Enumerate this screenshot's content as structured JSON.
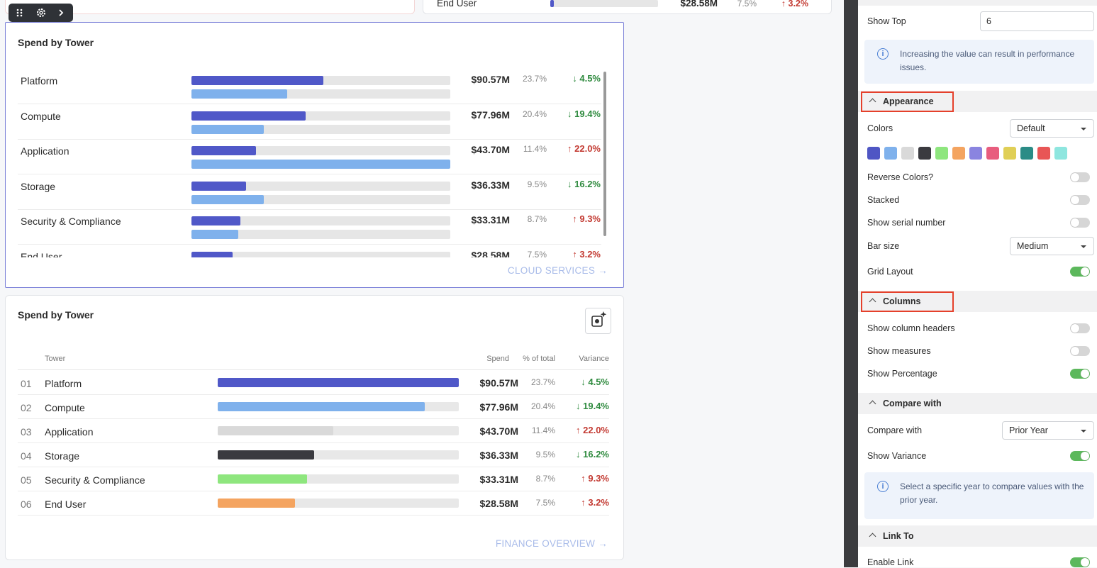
{
  "top_partial": {
    "tower": "End User",
    "spend": "$28.58M",
    "percent": "7.5%",
    "variance": "↑ 3.2%",
    "bar": 3
  },
  "card1": {
    "title": "Spend by Tower",
    "link": "CLOUD SERVICES →",
    "rows": [
      {
        "tower": "Platform",
        "spend": "$90.57M",
        "percent": "23.7%",
        "variance": "↓ 4.5%",
        "bar": 51,
        "compare_bar": 37
      },
      {
        "tower": "Compute",
        "spend": "$77.96M",
        "percent": "20.4%",
        "variance": "↓ 19.4%",
        "bar": 44,
        "compare_bar": 28
      },
      {
        "tower": "Application",
        "spend": "$43.70M",
        "percent": "11.4%",
        "variance": "↑ 22.0%",
        "bar": 25,
        "compare_bar": 100
      },
      {
        "tower": "Storage",
        "spend": "$36.33M",
        "percent": "9.5%",
        "variance": "↓ 16.2%",
        "bar": 21,
        "compare_bar": 28
      },
      {
        "tower": "Security & Compliance",
        "spend": "$33.31M",
        "percent": "8.7%",
        "variance": "↑ 9.3%",
        "bar": 19,
        "compare_bar": 18
      },
      {
        "tower": "End User",
        "spend": "$28.58M",
        "percent": "7.5%",
        "variance": "↑ 3.2%",
        "bar": 16
      }
    ]
  },
  "card2": {
    "title": "Spend by Tower",
    "link": "FINANCE OVERVIEW →",
    "headers": {
      "tower": "Tower",
      "spend": "Spend",
      "percent": "% of total",
      "variance": "Variance"
    },
    "rows": [
      {
        "rank": "01",
        "tower": "Platform",
        "spend": "$90.57M",
        "percent": "23.7%",
        "variance": "↓ 4.5%",
        "bar": 100,
        "color": "#5058c8"
      },
      {
        "rank": "02",
        "tower": "Compute",
        "spend": "$77.96M",
        "percent": "20.4%",
        "variance": "↓ 19.4%",
        "bar": 86,
        "color": "#7fb1ec"
      },
      {
        "rank": "03",
        "tower": "Application",
        "spend": "$43.70M",
        "percent": "11.4%",
        "variance": "↑ 22.0%",
        "bar": 48,
        "color": "#d9d9d9"
      },
      {
        "rank": "04",
        "tower": "Storage",
        "spend": "$36.33M",
        "percent": "9.5%",
        "variance": "↓ 16.2%",
        "bar": 40,
        "color": "#3a3a3f"
      },
      {
        "rank": "05",
        "tower": "Security & Compliance",
        "spend": "$33.31M",
        "percent": "8.7%",
        "variance": "↑ 9.3%",
        "bar": 37,
        "color": "#8ee67e"
      },
      {
        "rank": "06",
        "tower": "End User",
        "spend": "$28.58M",
        "percent": "7.5%",
        "variance": "↑ 3.2%",
        "bar": 32,
        "color": "#f4a460"
      }
    ]
  },
  "panel": {
    "show_top": {
      "label": "Show Top",
      "value": "6"
    },
    "info_performance": "Increasing the value can result in performance issues.",
    "appearance": {
      "title": "Appearance",
      "colors": {
        "label": "Colors",
        "value": "Default"
      },
      "swatches": [
        "#4f56c4",
        "#7fb1ec",
        "#d9d9d9",
        "#3a3a3f",
        "#8ee67e",
        "#f4a460",
        "#8a84e0",
        "#e85d7e",
        "#e0cf56",
        "#2b8c86",
        "#e85656",
        "#8ee6df"
      ],
      "reverse_colors": {
        "label": "Reverse Colors?",
        "on": false
      },
      "stacked": {
        "label": "Stacked",
        "on": false
      },
      "serial_number": {
        "label": "Show serial number",
        "on": false
      },
      "bar_size": {
        "label": "Bar size",
        "value": "Medium"
      },
      "grid_layout": {
        "label": "Grid Layout",
        "on": true
      }
    },
    "columns": {
      "title": "Columns",
      "column_headers": {
        "label": "Show column headers",
        "on": false
      },
      "measures": {
        "label": "Show measures",
        "on": false
      },
      "percentage": {
        "label": "Show Percentage",
        "on": true
      }
    },
    "compare": {
      "title": "Compare with",
      "compare_with": {
        "label": "Compare with",
        "value": "Prior Year"
      },
      "variance": {
        "label": "Show Variance",
        "on": true
      },
      "info": "Select a specific year to compare values with the prior year."
    },
    "link_to": {
      "title": "Link To",
      "enable_link": {
        "label": "Enable Link",
        "on": true
      }
    }
  }
}
